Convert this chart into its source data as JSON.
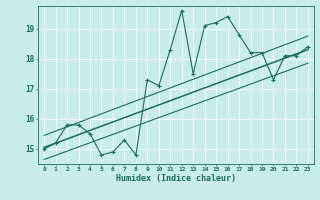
{
  "xlabel": "Humidex (Indice chaleur)",
  "bg_color": "#c8ecea",
  "line_color": "#1a6b5e",
  "grid_color": "#ffffff",
  "x_data": [
    0,
    1,
    2,
    3,
    4,
    5,
    6,
    7,
    8,
    9,
    10,
    11,
    12,
    13,
    14,
    15,
    16,
    17,
    18,
    19,
    20,
    21,
    22,
    23
  ],
  "y_data": [
    15.0,
    15.2,
    15.8,
    15.8,
    15.5,
    14.8,
    14.9,
    15.3,
    14.8,
    17.3,
    17.1,
    18.3,
    19.6,
    17.5,
    19.1,
    19.2,
    19.4,
    18.8,
    18.2,
    18.2,
    17.3,
    18.1,
    18.1,
    18.4
  ],
  "reg_line": [
    [
      0,
      15.05
    ],
    [
      23,
      18.3
    ]
  ],
  "upper_line": [
    [
      0,
      15.45
    ],
    [
      23,
      18.75
    ]
  ],
  "lower_line": [
    [
      0,
      14.65
    ],
    [
      23,
      17.85
    ]
  ],
  "ylim": [
    14.5,
    19.75
  ],
  "xlim": [
    -0.5,
    23.5
  ],
  "yticks": [
    15,
    16,
    17,
    18,
    19
  ],
  "xticks": [
    0,
    1,
    2,
    3,
    4,
    5,
    6,
    7,
    8,
    9,
    10,
    11,
    12,
    13,
    14,
    15,
    16,
    17,
    18,
    19,
    20,
    21,
    22,
    23
  ]
}
